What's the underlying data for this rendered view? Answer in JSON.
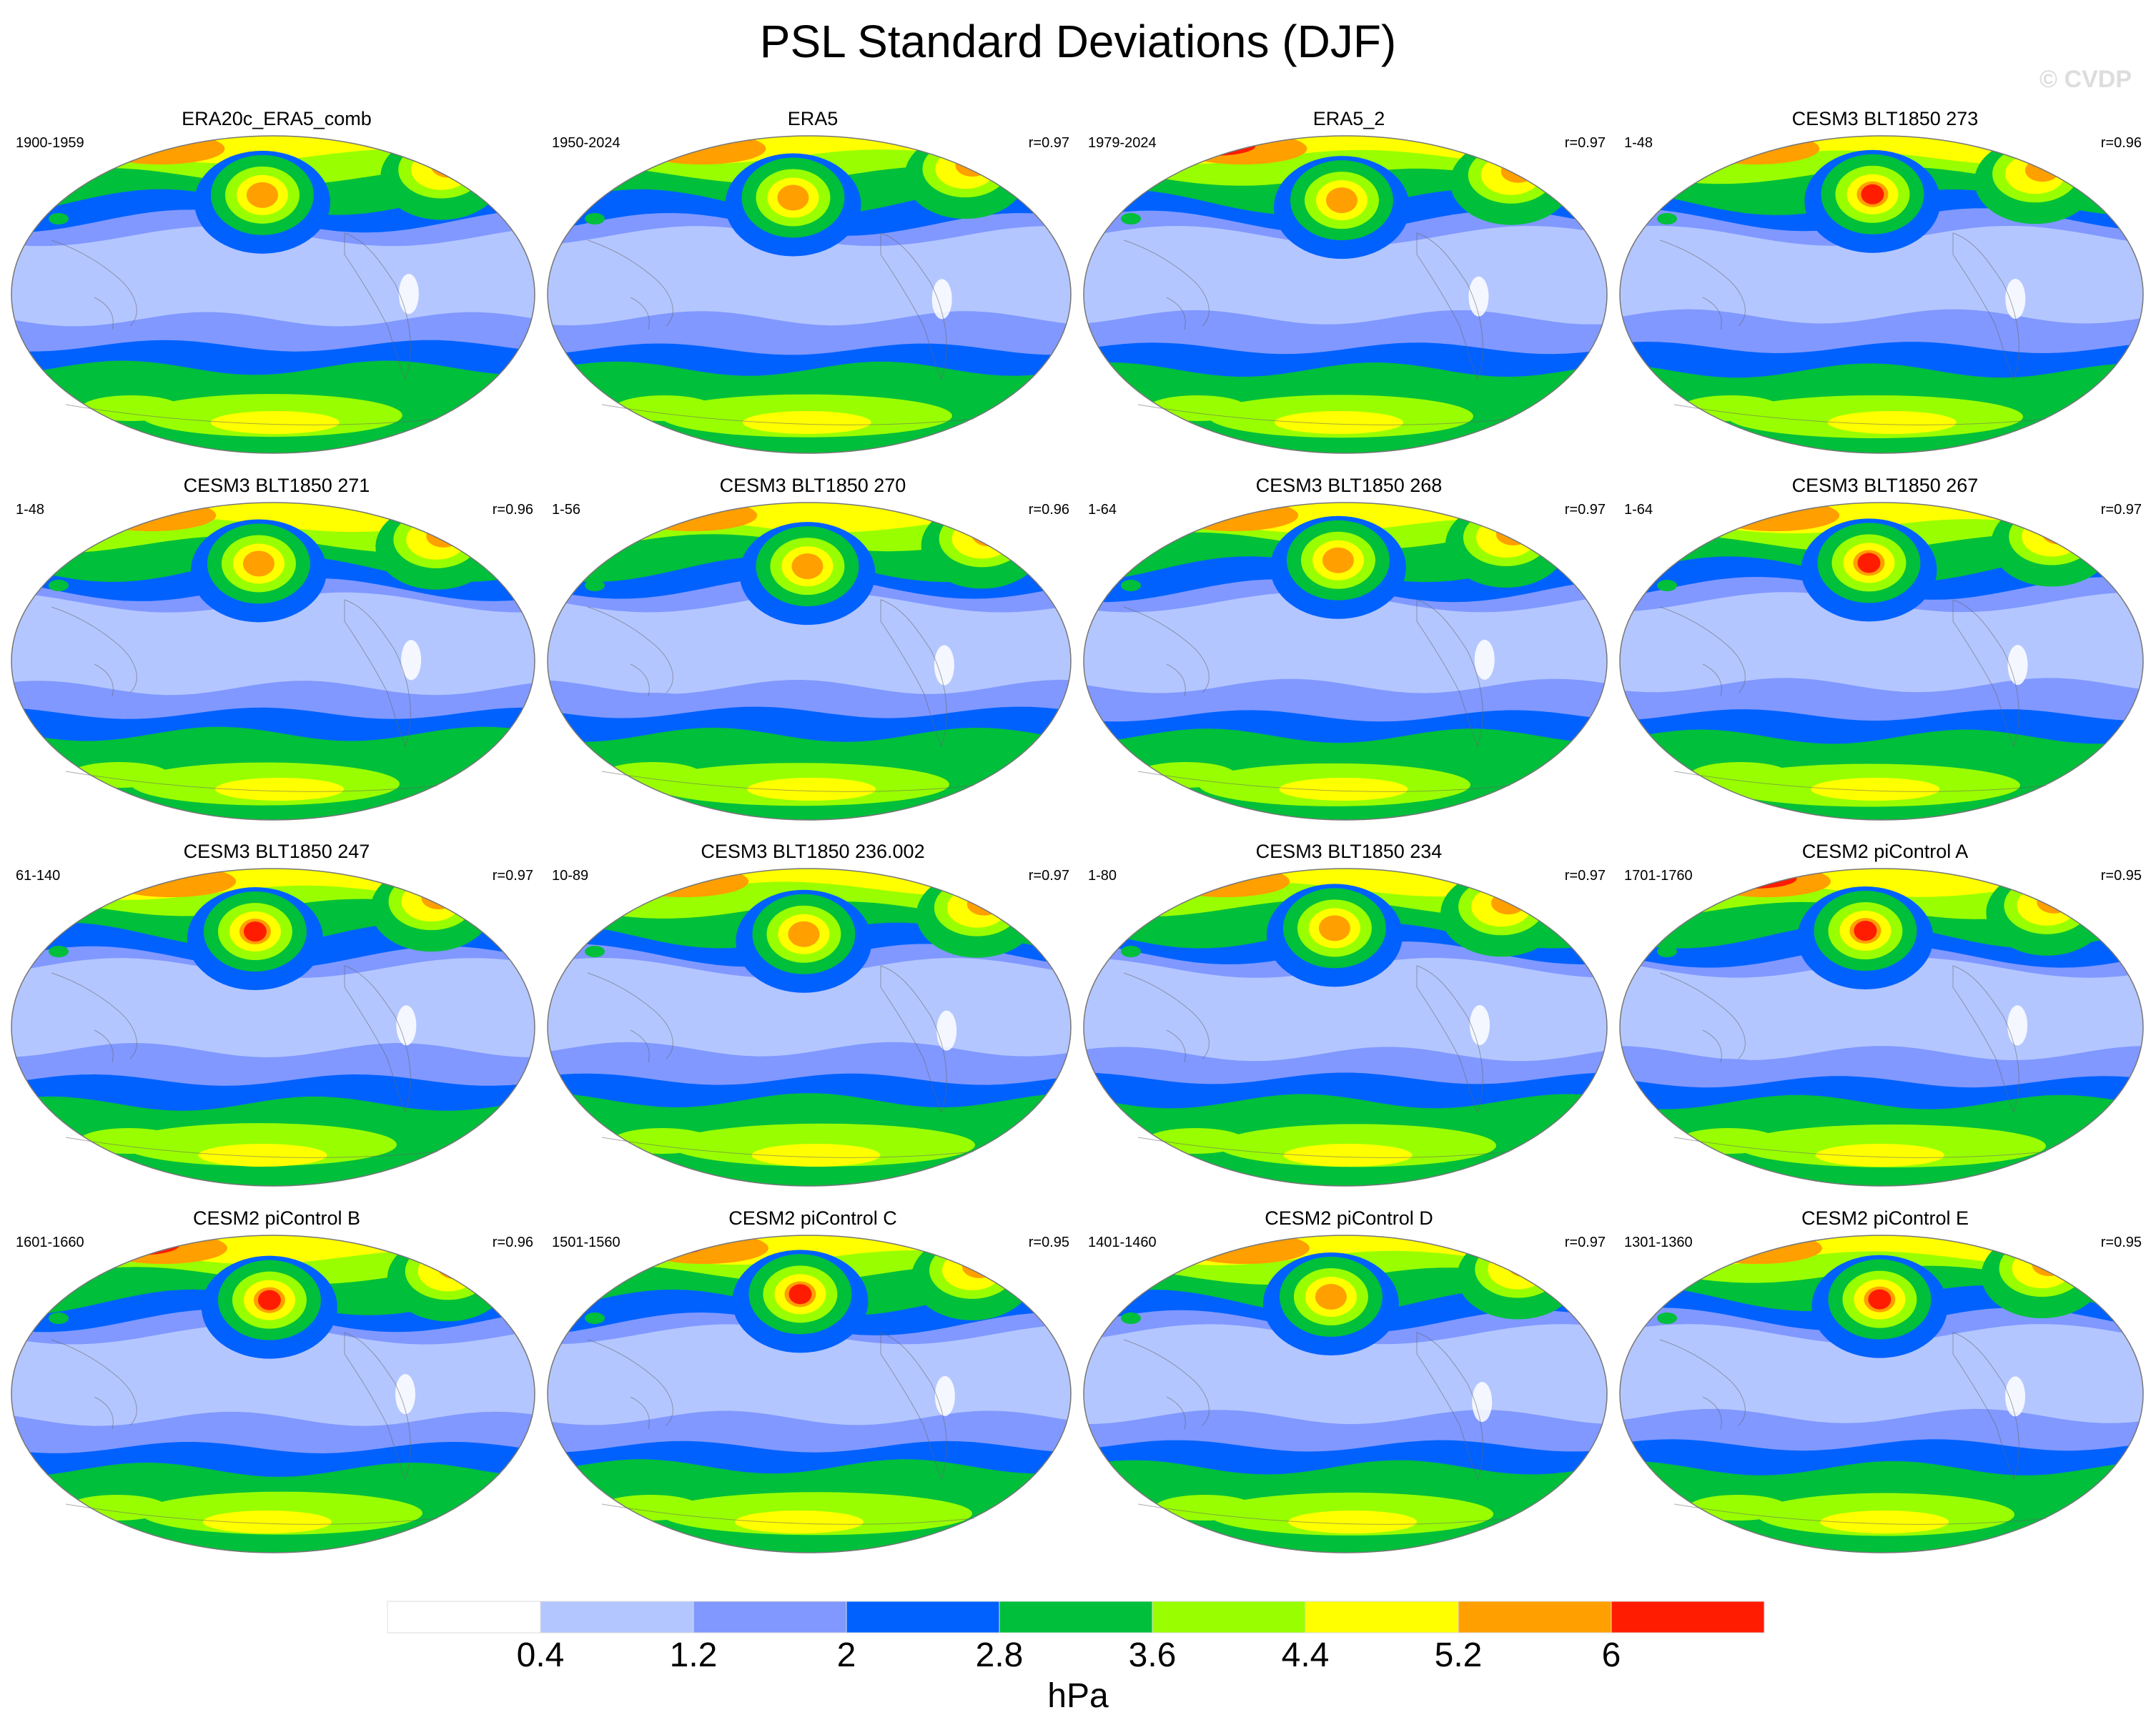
{
  "title": "PSL Standard Deviations (DJF)",
  "watermark": "© CVDP",
  "panels": [
    {
      "title": "ERA20c_ERA5_comb",
      "years": "1900-1959",
      "r": "",
      "variant": 0
    },
    {
      "title": "ERA5",
      "years": "1950-2024",
      "r": "r=0.97",
      "variant": 1
    },
    {
      "title": "ERA5_2",
      "years": "1979-2024",
      "r": "r=0.97",
      "variant": 2
    },
    {
      "title": "CESM3 BLT1850 273",
      "years": "1-48",
      "r": "r=0.96",
      "variant": 3
    },
    {
      "title": "CESM3 BLT1850 271",
      "years": "1-48",
      "r": "r=0.96",
      "variant": 4
    },
    {
      "title": "CESM3 BLT1850 270",
      "years": "1-56",
      "r": "r=0.96",
      "variant": 5
    },
    {
      "title": "CESM3 BLT1850 268",
      "years": "1-64",
      "r": "r=0.97",
      "variant": 6
    },
    {
      "title": "CESM3 BLT1850 267",
      "years": "1-64",
      "r": "r=0.97",
      "variant": 7
    },
    {
      "title": "CESM3 BLT1850 247",
      "years": "61-140",
      "r": "r=0.97",
      "variant": 8
    },
    {
      "title": "CESM3 BLT1850 236.002",
      "years": "10-89",
      "r": "r=0.97",
      "variant": 9
    },
    {
      "title": "CESM3 BLT1850 234",
      "years": "1-80",
      "r": "r=0.97",
      "variant": 10
    },
    {
      "title": "CESM2 piControl A",
      "years": "1701-1760",
      "r": "r=0.95",
      "variant": 11
    },
    {
      "title": "CESM2 piControl B",
      "years": "1601-1660",
      "r": "r=0.96",
      "variant": 12
    },
    {
      "title": "CESM2 piControl C",
      "years": "1501-1560",
      "r": "r=0.95",
      "variant": 13
    },
    {
      "title": "CESM2 piControl D",
      "years": "1401-1460",
      "r": "r=0.97",
      "variant": 14
    },
    {
      "title": "CESM2 piControl E",
      "years": "1301-1360",
      "r": "r=0.95",
      "variant": 15
    }
  ],
  "colorbar": {
    "units": "hPa",
    "labels": [
      "0.4",
      "1.2",
      "2",
      "2.8",
      "3.6",
      "4.4",
      "5.2",
      "6"
    ],
    "colors": [
      "#ffffff",
      "#b4c6ff",
      "#8098ff",
      "#0061ff",
      "#00bf3a",
      "#99ff00",
      "#ffff00",
      "#ff9f00",
      "#ff1c00"
    ]
  }
}
